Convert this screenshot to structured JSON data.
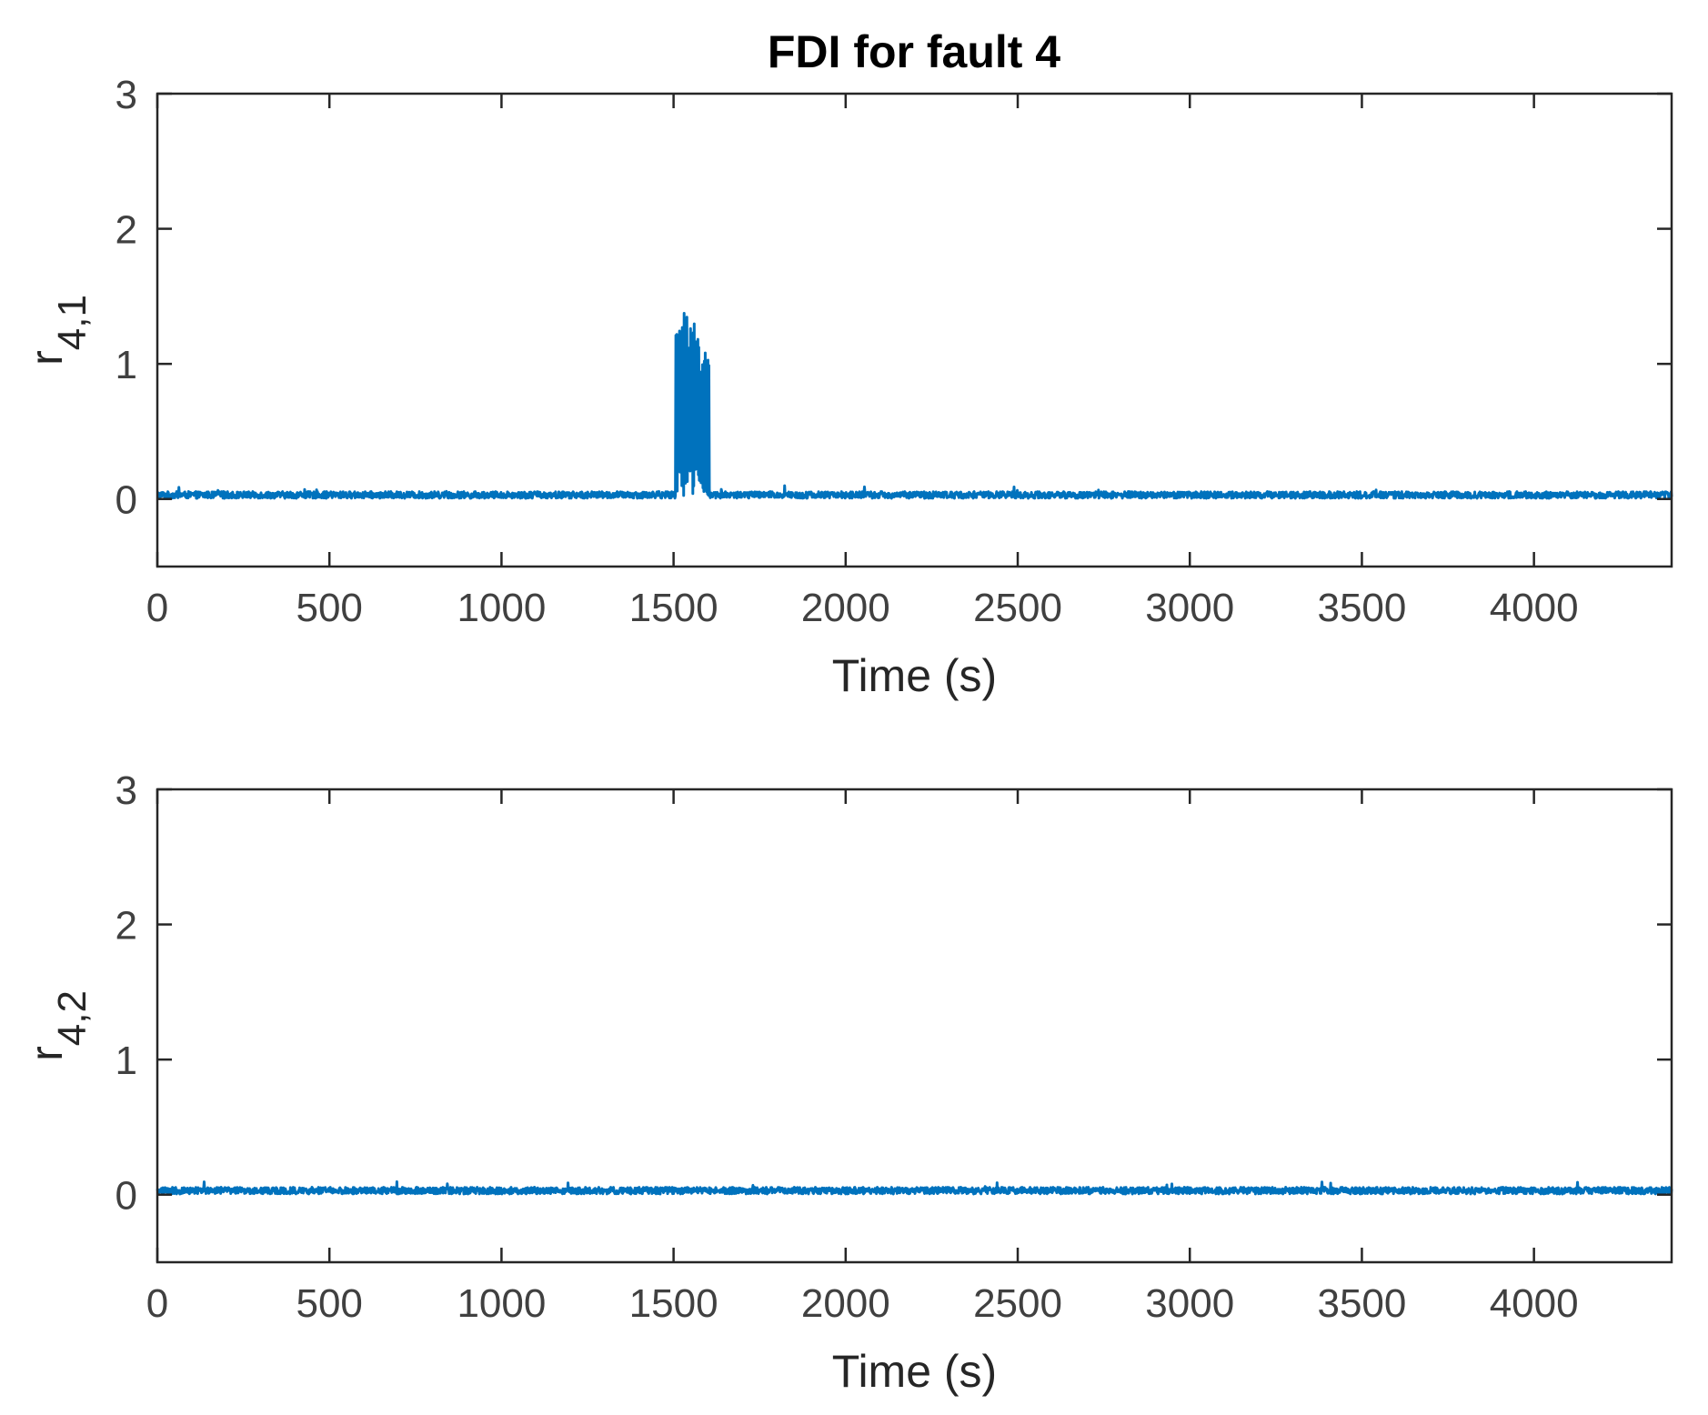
{
  "figure_title": "FDI for fault 4",
  "colors": {
    "series": "#0072BD",
    "axes": "#262626",
    "ticks": "#404040"
  },
  "chart_data": [
    {
      "type": "line",
      "title": "FDI for fault 4",
      "xlabel": "Time (s)",
      "ylabel": {
        "base": "r",
        "subscript": "4,1"
      },
      "xlim": [
        0,
        4400
      ],
      "ylim": [
        -0.5,
        3
      ],
      "xticks": [
        0,
        500,
        1000,
        1500,
        2000,
        2500,
        3000,
        3500,
        4000
      ],
      "yticks": [
        0,
        1,
        2,
        3
      ],
      "grid": false,
      "series": [
        {
          "baseline": 0.03,
          "noise": 0.025,
          "bursts": [
            {
              "x_start": 1505,
              "x_end": 1540,
              "y_max": 1.4
            },
            {
              "x_start": 1540,
              "x_end": 1575,
              "y_max": 1.3
            },
            {
              "x_start": 1575,
              "x_end": 1605,
              "y_max": 1.12
            }
          ],
          "burst_min": 0.02
        }
      ]
    },
    {
      "type": "line",
      "title": "",
      "xlabel": "Time (s)",
      "ylabel": {
        "base": "r",
        "subscript": "4,2"
      },
      "xlim": [
        0,
        4400
      ],
      "ylim": [
        -0.5,
        3
      ],
      "xticks": [
        0,
        500,
        1000,
        1500,
        2000,
        2500,
        3000,
        3500,
        4000
      ],
      "yticks": [
        0,
        1,
        2,
        3
      ],
      "grid": false,
      "series": [
        {
          "baseline": 0.03,
          "noise": 0.025,
          "bursts": [],
          "burst_min": 0
        }
      ]
    }
  ]
}
